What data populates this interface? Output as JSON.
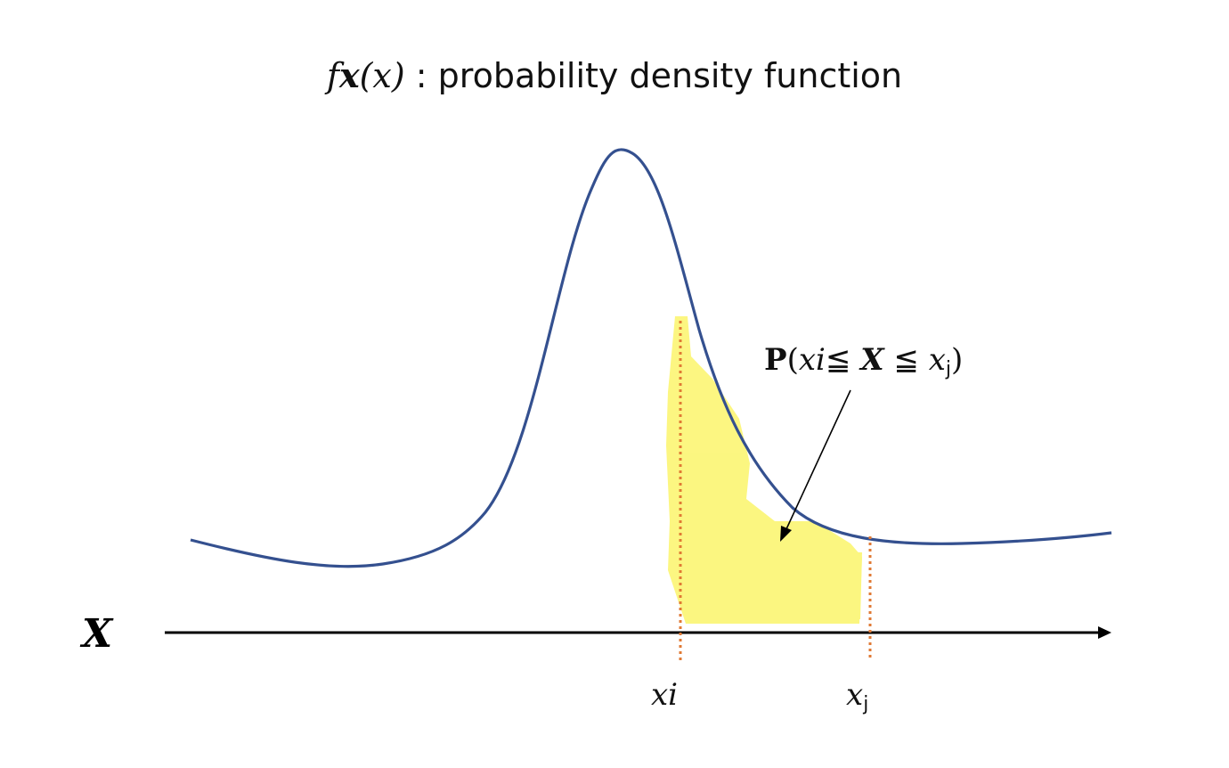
{
  "title": {
    "func": "f",
    "var_bold": "x",
    "arg": "(x)",
    "text": " : probability density function"
  },
  "axis": {
    "label": "X"
  },
  "ticks": {
    "xi": {
      "main": "xi"
    },
    "xj": {
      "main": "x",
      "sub": "j"
    }
  },
  "annotation": {
    "p": "P",
    "open": "(",
    "xi": "xi",
    "le1": "≦ ",
    "X": "X",
    "le2": " ≦ ",
    "xj_main": "x",
    "xj_sub": "j",
    "close": ")"
  },
  "colors": {
    "curve": "#34508f",
    "highlight": "#fbf56b",
    "bound_lines": "#e07a35",
    "axis": "#000000"
  }
}
